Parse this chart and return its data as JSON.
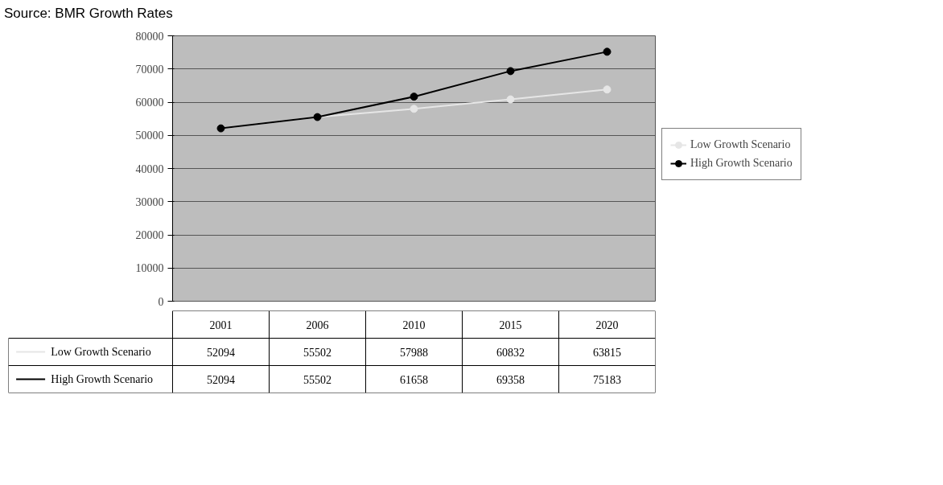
{
  "chart_data": {
    "type": "line",
    "annotations": [
      "Source: BMR Growth Rates"
    ],
    "categories": [
      "2001",
      "2006",
      "2010",
      "2015",
      "2020"
    ],
    "series": [
      {
        "name": "Low Growth Scenario",
        "color": "#e6e6e6",
        "values": [
          52094,
          55502,
          57988,
          60832,
          63815
        ]
      },
      {
        "name": "High Growth Scenario",
        "color": "#000000",
        "values": [
          52094,
          55502,
          61658,
          69358,
          75183
        ]
      }
    ],
    "ylim": [
      0,
      80000
    ],
    "yticks": [
      0,
      10000,
      20000,
      30000,
      40000,
      50000,
      60000,
      70000,
      80000
    ],
    "grid": "y",
    "legend": "right",
    "marker": "circle",
    "line_style": "solid",
    "data_labels": true
  }
}
